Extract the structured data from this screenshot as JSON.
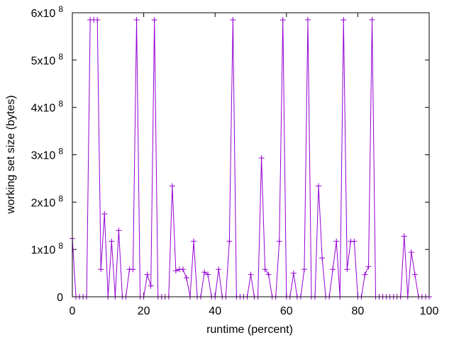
{
  "chart_data": {
    "type": "line",
    "title": "",
    "xlabel": "runtime (percent)",
    "ylabel": "working set size (bytes)",
    "xlim": [
      0,
      100
    ],
    "ylim": [
      0,
      600000000
    ],
    "grid": false,
    "legend": "none",
    "marker": "+",
    "line_color": "#9400d3",
    "x_ticks": [
      {
        "value": 0,
        "label": "0"
      },
      {
        "value": 20,
        "label": "20"
      },
      {
        "value": 40,
        "label": "40"
      },
      {
        "value": 60,
        "label": "60"
      },
      {
        "value": 80,
        "label": "80"
      },
      {
        "value": 100,
        "label": "100"
      }
    ],
    "y_ticks": [
      {
        "value": 0,
        "label": "0"
      },
      {
        "value": 100000000,
        "label": "1x10",
        "exp": "8"
      },
      {
        "value": 200000000,
        "label": "2x10",
        "exp": "8"
      },
      {
        "value": 300000000,
        "label": "3x10",
        "exp": "8"
      },
      {
        "value": 400000000,
        "label": "4x10",
        "exp": "8"
      },
      {
        "value": 500000000,
        "label": "5x10",
        "exp": "8"
      },
      {
        "value": 600000000,
        "label": "6x10",
        "exp": "8"
      }
    ],
    "series": [
      {
        "x": [
          0,
          1,
          2,
          3,
          4,
          5,
          6,
          7,
          8,
          9,
          10,
          11,
          12,
          13,
          14,
          15,
          16,
          17,
          18,
          19,
          20,
          21,
          22,
          23,
          24,
          25,
          26,
          27,
          28,
          29,
          30,
          31,
          32,
          33,
          34,
          35,
          36,
          37,
          38,
          39,
          40,
          41,
          42,
          43,
          44,
          45,
          46,
          47,
          48,
          49,
          50,
          51,
          52,
          53,
          54,
          55,
          56,
          57,
          58,
          59,
          60,
          61,
          62,
          63,
          64,
          65,
          66,
          67,
          68,
          69,
          70,
          71,
          72,
          73,
          74,
          75,
          76,
          77,
          78,
          79,
          80,
          81,
          82,
          83,
          84,
          85,
          86,
          87,
          88,
          89,
          90,
          91,
          92,
          93,
          94,
          95,
          96,
          97,
          98,
          99,
          100
        ],
        "y": [
          123000000,
          0,
          0,
          0,
          0,
          585000000,
          585000000,
          585000000,
          58000000,
          175000000,
          0,
          117000000,
          0,
          140000000,
          0,
          0,
          58000000,
          58000000,
          585000000,
          0,
          0,
          47000000,
          23000000,
          585000000,
          0,
          0,
          0,
          0,
          234000000,
          55000000,
          58000000,
          58000000,
          40000000,
          0,
          117000000,
          0,
          0,
          52000000,
          47000000,
          0,
          0,
          58000000,
          0,
          0,
          117000000,
          585000000,
          0,
          0,
          0,
          0,
          47000000,
          0,
          0,
          293000000,
          58000000,
          47000000,
          0,
          0,
          117000000,
          585000000,
          0,
          0,
          50000000,
          0,
          0,
          58000000,
          585000000,
          0,
          0,
          234000000,
          82000000,
          0,
          0,
          58000000,
          117000000,
          0,
          585000000,
          58000000,
          117000000,
          117000000,
          0,
          0,
          47000000,
          64000000,
          585000000,
          0,
          0,
          0,
          0,
          0,
          0,
          0,
          0,
          128000000,
          0,
          94000000,
          47000000,
          0,
          0,
          0,
          0
        ]
      }
    ]
  }
}
